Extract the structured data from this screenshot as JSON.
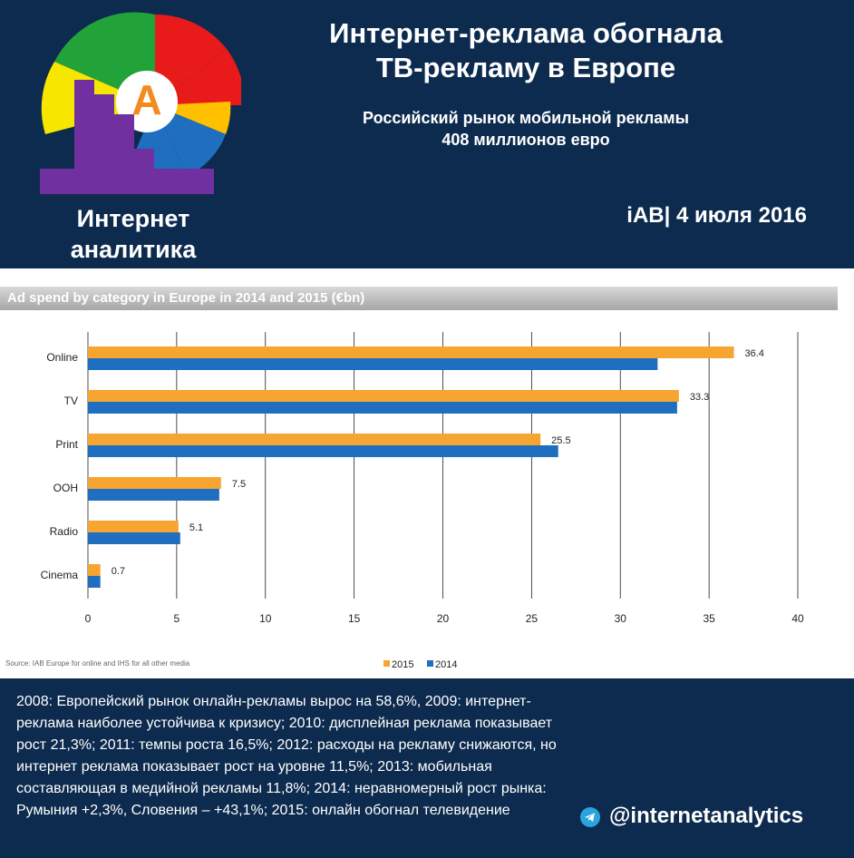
{
  "header": {
    "logo_letter": "A",
    "logo_caption_line1": "Интернет",
    "logo_caption_line2": "аналитика",
    "headline_line1": "Интернет-реклама обогнала",
    "headline_line2": "ТВ-рекламу в Европе",
    "subheadline_line1": "Российский рынок мобильной рекламы",
    "subheadline_line2": "408 миллионов евро",
    "source_date": "iAB| 4 июля 2016"
  },
  "colors": {
    "navy": "#0d2b4e",
    "series_2015": "#f6a531",
    "series_2014": "#1f6ec0"
  },
  "chart_data": {
    "type": "bar",
    "orientation": "horizontal",
    "title": "Ad spend by category in Europe in 2014 and 2015 (€bn)",
    "categories": [
      "Online",
      "TV",
      "Print",
      "OOH",
      "Radio",
      "Cinema"
    ],
    "series": [
      {
        "name": "2015",
        "values": [
          36.4,
          33.3,
          25.5,
          7.5,
          5.1,
          0.7
        ],
        "labels": [
          "36.4",
          "33.3",
          "25.5",
          "7.5",
          "5.1",
          "0.7"
        ]
      },
      {
        "name": "2014",
        "values": [
          32.1,
          33.2,
          26.5,
          7.4,
          5.2,
          0.7
        ]
      }
    ],
    "x_ticks": [
      "0",
      "5",
      "10",
      "15",
      "20",
      "25",
      "30",
      "35",
      "40"
    ],
    "xlim": [
      0,
      40
    ],
    "grid": true,
    "legend_position": "bottom-center",
    "source": "Source: IAB Europe for online and IHS for all other media"
  },
  "footer": {
    "text": "2008: Европейский рынок онлайн-рекламы вырос на 58,6%, 2009: интернет-реклама наиболее устойчива к кризису; 2010: дисплейная реклама показывает рост 21,3%; 2011: темпы роста 16,5%; 2012: расходы на рекламу снижаются, но интернет реклама показывает рост на уровне 11,5%; 2013: мобильная составляющая в медийной рекламы 11,8%; 2014: неравномерный рост рынка: Румыния +2,3%, Словения – +43,1%; 2015: онлайн обогнал телевидение",
    "telegram_icon": "telegram-icon",
    "handle": "@internetanalytics"
  }
}
